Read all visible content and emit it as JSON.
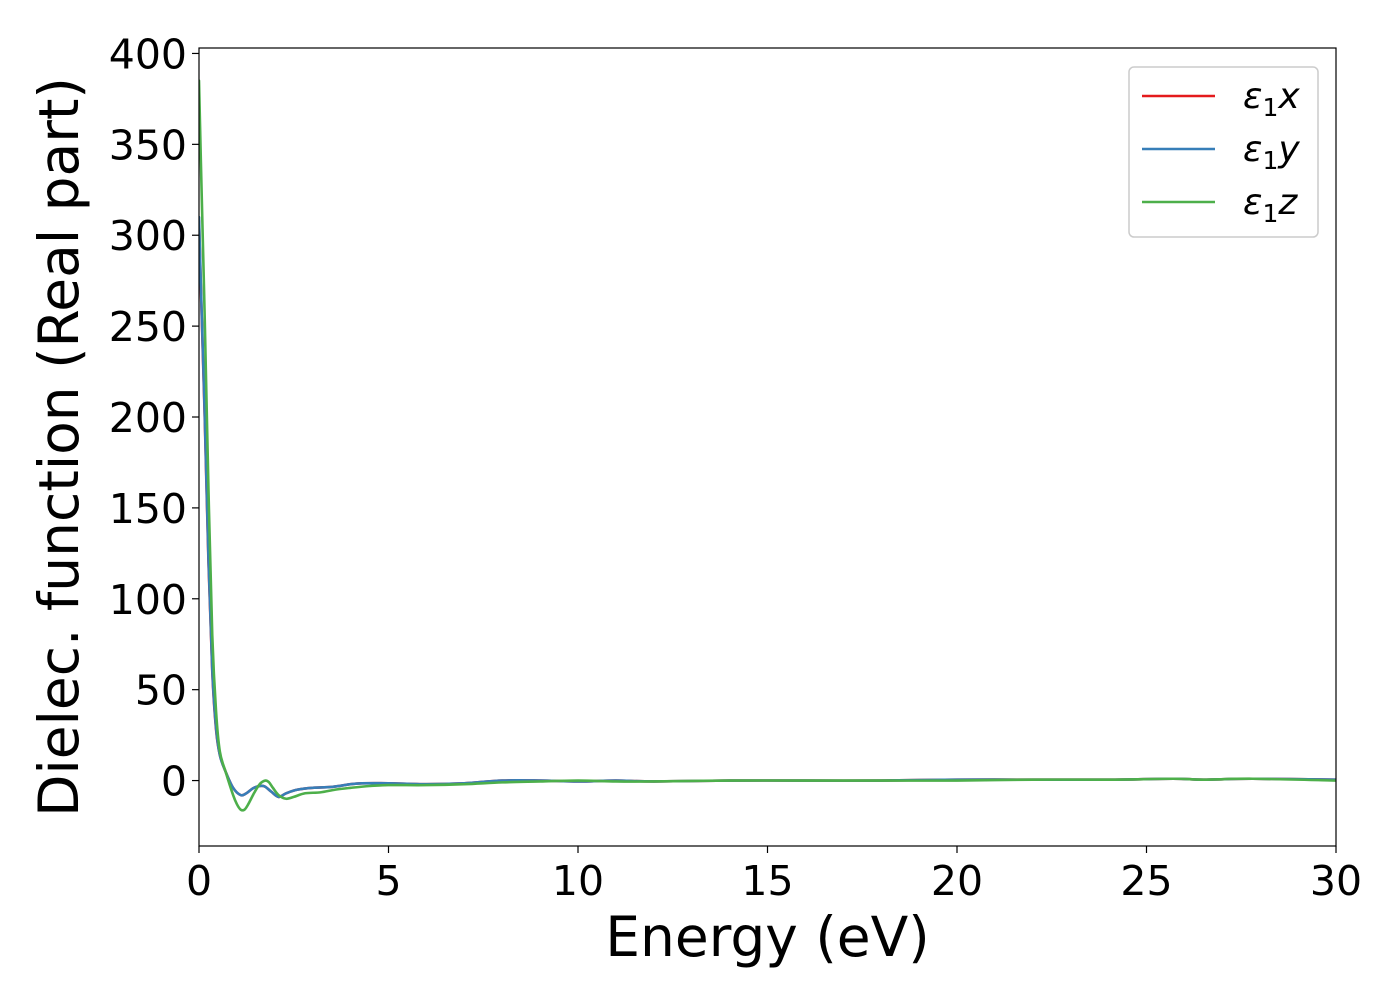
{
  "chart_data": {
    "type": "line",
    "title": "",
    "xlabel": "Energy (eV)",
    "ylabel": "Dielec. function (Real part)",
    "xlim": [
      0,
      30
    ],
    "ylim": [
      -36,
      403
    ],
    "xticks": [
      0,
      5,
      10,
      15,
      20,
      25,
      30
    ],
    "yticks": [
      0,
      50,
      100,
      150,
      200,
      250,
      300,
      350,
      400
    ],
    "xtick_labels": [
      "0",
      "5",
      "10",
      "15",
      "20",
      "25",
      "30"
    ],
    "ytick_labels": [
      "0",
      "50",
      "100",
      "150",
      "200",
      "250",
      "300",
      "350",
      "400"
    ],
    "grid": false,
    "legend_position": "top-right",
    "series": [
      {
        "name": "ε1x",
        "legend_base": "ε",
        "legend_sub": "1",
        "legend_var": "x",
        "color": "#e41a1c",
        "x": [
          0.0,
          0.05,
          0.15,
          0.25,
          0.35,
          0.45,
          0.55,
          0.7,
          0.9,
          1.1,
          1.25,
          1.45,
          1.7,
          1.9,
          2.1,
          2.3,
          2.6,
          3.0,
          3.5,
          4.0,
          4.3,
          5.0,
          6.0,
          7.0,
          8.0,
          9.0,
          10.0,
          11.0,
          12.0,
          14.0,
          16.0,
          18.0,
          20.0,
          22.0,
          24.0,
          25.7,
          26.5,
          27.8,
          30.0
        ],
        "y": [
          308,
          270,
          200,
          120,
          60,
          28,
          14,
          5,
          -4,
          -8,
          -7,
          -4,
          -3,
          -6,
          -9,
          -7,
          -5,
          -4,
          -3.5,
          -2,
          -1.5,
          -1.5,
          -2,
          -1.5,
          0,
          0,
          -0.5,
          0,
          -0.5,
          0,
          0,
          0,
          0.5,
          0.5,
          0.5,
          1,
          0.5,
          1,
          0.5
        ]
      },
      {
        "name": "ε1y",
        "legend_base": "ε",
        "legend_sub": "1",
        "legend_var": "y",
        "color": "#377eb8",
        "x": [
          0.0,
          0.05,
          0.15,
          0.25,
          0.35,
          0.45,
          0.55,
          0.7,
          0.9,
          1.1,
          1.25,
          1.45,
          1.7,
          1.9,
          2.1,
          2.3,
          2.6,
          3.0,
          3.5,
          4.0,
          4.3,
          5.0,
          6.0,
          7.0,
          8.0,
          9.0,
          10.0,
          11.0,
          12.0,
          14.0,
          16.0,
          18.0,
          20.0,
          22.0,
          24.0,
          25.7,
          26.5,
          27.8,
          30.0
        ],
        "y": [
          310,
          272,
          202,
          122,
          61,
          29,
          14,
          5,
          -4,
          -8,
          -7,
          -4,
          -3,
          -6,
          -9,
          -7,
          -5,
          -4,
          -3.5,
          -2,
          -1.5,
          -1.5,
          -2,
          -1.5,
          0,
          0,
          -0.5,
          0,
          -0.5,
          0,
          0,
          0,
          0.5,
          0.5,
          0.5,
          1,
          0.5,
          1,
          0.5
        ]
      },
      {
        "name": "ε1z",
        "legend_base": "ε",
        "legend_sub": "1",
        "legend_var": "z",
        "color": "#4daf4a",
        "x": [
          0.0,
          0.05,
          0.15,
          0.25,
          0.35,
          0.45,
          0.55,
          0.7,
          0.9,
          1.0,
          1.1,
          1.2,
          1.3,
          1.45,
          1.6,
          1.75,
          1.85,
          1.95,
          2.1,
          2.3,
          2.5,
          2.8,
          3.2,
          3.6,
          4.0,
          4.5,
          5.0,
          6.0,
          7.0,
          8.0,
          9.0,
          10.0,
          11.0,
          12.0,
          14.0,
          16.0,
          18.0,
          20.0,
          22.0,
          24.0,
          25.7,
          26.5,
          27.8,
          30.0
        ],
        "y": [
          385,
          340,
          255,
          160,
          80,
          38,
          16,
          5,
          -8,
          -13,
          -16,
          -16,
          -13,
          -7,
          -2,
          0,
          -1,
          -4,
          -8,
          -10,
          -9,
          -7,
          -6.5,
          -5,
          -4,
          -3,
          -2.5,
          -2.5,
          -2,
          -1,
          -0.5,
          0,
          -0.5,
          -0.5,
          0,
          0,
          0,
          0,
          0.5,
          0.5,
          1,
          0.5,
          1,
          0
        ]
      }
    ]
  }
}
